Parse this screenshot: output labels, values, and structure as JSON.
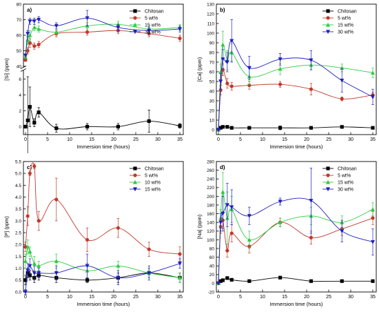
{
  "chart_data": [
    {
      "panel_label": "a)",
      "type": "line",
      "xlabel": "Immersion time (hours)",
      "ylabel": "[Si] (ppm)",
      "xlim": [
        0,
        35
      ],
      "x_ticks": [
        0,
        5,
        10,
        15,
        20,
        25,
        30,
        35
      ],
      "broken_y_axis": true,
      "ylim_lower": [
        -1,
        7
      ],
      "ylim_upper": [
        40,
        80
      ],
      "y_ticks_lower": [
        0,
        2,
        4,
        6
      ],
      "y_ticks_upper": [
        40,
        50,
        60,
        70,
        80
      ],
      "legend_position": "upper-right",
      "series": [
        {
          "name": "Chitosan",
          "color": "#000000",
          "marker": "square",
          "x": [
            0,
            0.5,
            1,
            2,
            3,
            7,
            14,
            21,
            28,
            35
          ],
          "y": [
            0,
            0.8,
            2.5,
            0.5,
            1.8,
            -0.2,
            0,
            0,
            0.7,
            0.1
          ],
          "err": [
            0,
            5.5,
            2.5,
            0.5,
            0.6,
            0.5,
            0.4,
            0.4,
            1.4,
            0.3
          ]
        },
        {
          "name": "5 wt%",
          "color": "#c0392b",
          "marker": "circle",
          "x": [
            0,
            0.5,
            1,
            2,
            3,
            7,
            14,
            21,
            28,
            35
          ],
          "y": [
            44,
            50,
            55,
            53,
            54,
            61,
            62,
            63,
            61,
            58
          ],
          "err": [
            0,
            2,
            3,
            2,
            2,
            2,
            2,
            2,
            2,
            2
          ]
        },
        {
          "name": "15 wt%",
          "color": "#2ecc40",
          "marker": "triangle-up",
          "x": [
            0,
            0.5,
            1,
            2,
            3,
            7,
            14,
            21,
            28,
            35
          ],
          "y": [
            46,
            57,
            60,
            65,
            64,
            62,
            66,
            67,
            64,
            65
          ],
          "err": [
            0,
            3,
            3,
            2,
            2,
            2,
            2,
            2,
            2,
            2
          ]
        },
        {
          "name": "30 wt%",
          "color": "#1f1fbf",
          "marker": "triangle-down",
          "x": [
            0,
            0.5,
            1,
            2,
            3,
            7,
            14,
            21,
            28,
            35
          ],
          "y": [
            47,
            61,
            69,
            69,
            70,
            66,
            71,
            65,
            63,
            64
          ],
          "err": [
            0,
            2,
            2,
            2,
            2,
            2,
            5,
            2,
            2,
            2
          ]
        }
      ]
    },
    {
      "panel_label": "b)",
      "type": "line",
      "xlabel": "Immersion time (hours)",
      "ylabel": "[Ca] (ppm)",
      "xlim": [
        0,
        35
      ],
      "x_ticks": [
        0,
        5,
        10,
        15,
        20,
        25,
        30,
        35
      ],
      "ylim": [
        -5,
        130
      ],
      "y_ticks": [
        0,
        10,
        20,
        30,
        40,
        50,
        60,
        70,
        80,
        90,
        100,
        110,
        120,
        130
      ],
      "legend_position": "upper-right",
      "series": [
        {
          "name": "Chitosan",
          "color": "#000000",
          "marker": "square",
          "x": [
            0,
            0.5,
            1,
            2,
            3,
            7,
            14,
            21,
            28,
            35
          ],
          "y": [
            0,
            2,
            3,
            3,
            2,
            2,
            2,
            2,
            3,
            2
          ],
          "err": [
            0,
            1,
            1,
            1,
            1,
            1,
            2,
            1,
            1,
            1
          ]
        },
        {
          "name": "5 wt%",
          "color": "#c0392b",
          "marker": "circle",
          "x": [
            0,
            0.5,
            1,
            2,
            3,
            7,
            14,
            21,
            28,
            35
          ],
          "y": [
            0,
            41,
            62,
            48,
            45,
            46,
            47,
            42,
            32,
            36
          ],
          "err": [
            0,
            5,
            6,
            5,
            4,
            4,
            3,
            6,
            2,
            3
          ]
        },
        {
          "name": "15 wt%",
          "color": "#2ecc40",
          "marker": "triangle-up",
          "x": [
            0,
            0.5,
            1,
            2,
            3,
            7,
            14,
            21,
            28,
            35
          ],
          "y": [
            0,
            60,
            88,
            72,
            80,
            55,
            63,
            67,
            64,
            59
          ],
          "err": [
            0,
            8,
            14,
            10,
            9,
            8,
            6,
            5,
            4,
            5
          ]
        },
        {
          "name": "30 wt%",
          "color": "#1f1fbf",
          "marker": "triangle-down",
          "x": [
            0,
            0.5,
            1,
            2,
            3,
            7,
            14,
            21,
            28,
            35
          ],
          "y": [
            0,
            50,
            73,
            70,
            92,
            64,
            73,
            72,
            51,
            34
          ],
          "err": [
            0,
            8,
            10,
            10,
            22,
            12,
            6,
            10,
            12,
            8
          ]
        }
      ]
    },
    {
      "panel_label": "c)",
      "type": "line",
      "xlabel": "Immersion time (hours)",
      "ylabel": "[P] (ppm)",
      "xlim": [
        0,
        35
      ],
      "x_ticks": [
        0,
        5,
        10,
        15,
        20,
        25,
        30,
        35
      ],
      "ylim": [
        0,
        5.5
      ],
      "y_ticks": [
        0,
        0.5,
        1,
        1.5,
        2,
        2.5,
        3,
        3.5,
        4,
        4.5,
        5,
        5.5
      ],
      "y_tick_labels": [
        "0.0",
        "0.5",
        "1.0",
        "1.5",
        "2.0",
        "2.5",
        "3.0",
        "3.5",
        "4.0",
        "4.5",
        "5.0",
        "5.5"
      ],
      "legend_position": "upper-right",
      "series": [
        {
          "name": "Chitosan",
          "color": "#000000",
          "marker": "square",
          "x": [
            0,
            0.5,
            1,
            2,
            3,
            7,
            14,
            21,
            28,
            35
          ],
          "y": [
            0.5,
            0.8,
            0.7,
            0.6,
            0.7,
            0.6,
            0.5,
            0.6,
            0.8,
            0.6
          ],
          "err": [
            0.2,
            0.2,
            0.2,
            0.2,
            0.2,
            0.2,
            0.1,
            0.2,
            0.2,
            0.2
          ]
        },
        {
          "name": "5 wt%",
          "color": "#c0392b",
          "marker": "circle",
          "x": [
            0,
            0.5,
            1,
            2,
            3,
            7,
            14,
            21,
            28,
            35
          ],
          "y": [
            1.9,
            3.2,
            5.0,
            5.3,
            3.0,
            3.9,
            2.2,
            2.7,
            1.8,
            1.6
          ],
          "err": [
            0.2,
            0.4,
            0.1,
            0.1,
            0.4,
            0.9,
            0.5,
            0.4,
            0.3,
            0.3
          ]
        },
        {
          "name": "10 wt%",
          "color": "#2ecc40",
          "marker": "triangle-up",
          "x": [
            0,
            0.5,
            1,
            2,
            3,
            7,
            14,
            21,
            28,
            35
          ],
          "y": [
            1.3,
            1.9,
            1.7,
            1.2,
            1.1,
            1.3,
            0.9,
            1.1,
            0.8,
            0.6
          ],
          "err": [
            0.3,
            0.3,
            0.2,
            0.3,
            0.2,
            0.3,
            0.3,
            0.2,
            0.2,
            0.2
          ]
        },
        {
          "name": "15 wt%",
          "color": "#1f1fbf",
          "marker": "triangle-down",
          "x": [
            0,
            0.5,
            1,
            2,
            3,
            7,
            14,
            21,
            28,
            35
          ],
          "y": [
            0,
            0.9,
            1.1,
            0.8,
            0.8,
            0.8,
            1.1,
            0.6,
            0.8,
            1.2
          ],
          "err": [
            0.1,
            0.3,
            0.3,
            0.3,
            0.2,
            0.3,
            0.5,
            0.3,
            0.3,
            0.2
          ]
        }
      ]
    },
    {
      "panel_label": "d)",
      "type": "line",
      "xlabel": "Immersion time (hours)",
      "ylabel": "[Na] (ppm)",
      "xlim": [
        0,
        35
      ],
      "x_ticks": [
        0,
        5,
        10,
        15,
        20,
        25,
        30,
        35
      ],
      "ylim": [
        -20,
        280
      ],
      "y_ticks": [
        -20,
        0,
        20,
        40,
        60,
        80,
        100,
        120,
        140,
        160,
        180,
        200,
        220,
        240,
        260,
        280
      ],
      "legend_position": "upper-right",
      "series": [
        {
          "name": "Chitosan",
          "color": "#000000",
          "marker": "square",
          "x": [
            0,
            0.5,
            1,
            2,
            3,
            7,
            14,
            21,
            28,
            35
          ],
          "y": [
            0,
            5,
            7,
            12,
            8,
            5,
            13,
            5,
            5,
            5
          ],
          "err": [
            0,
            2,
            2,
            3,
            2,
            2,
            3,
            2,
            2,
            2
          ]
        },
        {
          "name": "5 wt%",
          "color": "#c0392b",
          "marker": "circle",
          "x": [
            0,
            0.5,
            1,
            2,
            3,
            7,
            14,
            21,
            28,
            35
          ],
          "y": [
            0,
            130,
            145,
            75,
            115,
            85,
            140,
            105,
            125,
            150
          ],
          "err": [
            0,
            15,
            20,
            15,
            20,
            15,
            10,
            15,
            15,
            15
          ]
        },
        {
          "name": "15 wt%",
          "color": "#2ecc40",
          "marker": "triangle-up",
          "x": [
            0,
            0.5,
            1,
            2,
            3,
            7,
            14,
            21,
            28,
            35
          ],
          "y": [
            0,
            150,
            210,
            150,
            170,
            100,
            140,
            155,
            140,
            170
          ],
          "err": [
            0,
            20,
            45,
            60,
            30,
            20,
            10,
            20,
            15,
            15
          ]
        },
        {
          "name": "30 wt%",
          "color": "#1f1fbf",
          "marker": "triangle-down",
          "x": [
            0,
            0.5,
            1,
            2,
            3,
            7,
            14,
            21,
            28,
            35
          ],
          "y": [
            0,
            140,
            160,
            180,
            175,
            155,
            188,
            190,
            120,
            95
          ],
          "err": [
            0,
            20,
            40,
            50,
            40,
            20,
            8,
            75,
            25,
            30
          ]
        }
      ]
    }
  ]
}
